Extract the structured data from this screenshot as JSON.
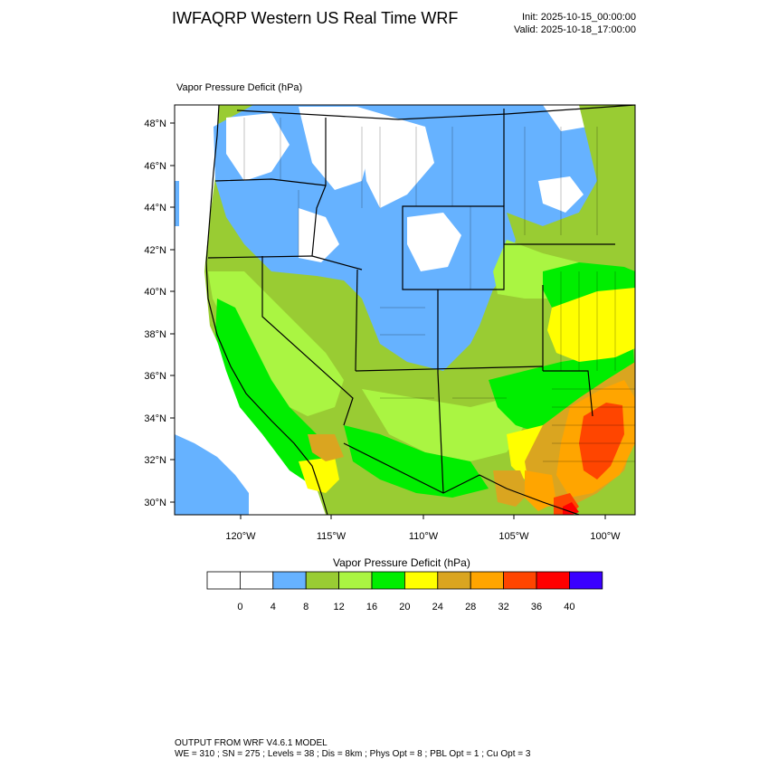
{
  "header": {
    "title": "IWFAQRP Western US Real Time WRF",
    "init": "Init: 2025-10-15_00:00:00",
    "valid": "Valid: 2025-10-18_17:00:00"
  },
  "field": {
    "label": "Vapor Pressure Deficit   (hPa)"
  },
  "map": {
    "lat_ticks": [
      "48°N",
      "46°N",
      "44°N",
      "42°N",
      "40°N",
      "38°N",
      "36°N",
      "34°N",
      "32°N",
      "30°N"
    ],
    "lon_ticks": [
      "120°W",
      "115°W",
      "110°W",
      "105°W",
      "100°W"
    ]
  },
  "colorbar": {
    "title": "Vapor Pressure Deficit  (hPa)",
    "labels": [
      "0",
      "4",
      "8",
      "12",
      "16",
      "20",
      "24",
      "28",
      "32",
      "36",
      "40"
    ],
    "colors": [
      "#ffffff",
      "#ffffff",
      "#66b2ff",
      "#99cc33",
      "#aaf542",
      "#00ee00",
      "#ffff00",
      "#daa520",
      "#ffa500",
      "#ff4500",
      "#ff0000",
      "#3a00ff"
    ]
  },
  "footer": {
    "line1": "OUTPUT FROM WRF V4.6.1 MODEL",
    "line2": "WE = 310 ; SN = 275 ; Levels = 38 ; Dis = 8km ; Phys Opt = 8 ; PBL Opt = 1 ; Cu Opt = 3"
  }
}
